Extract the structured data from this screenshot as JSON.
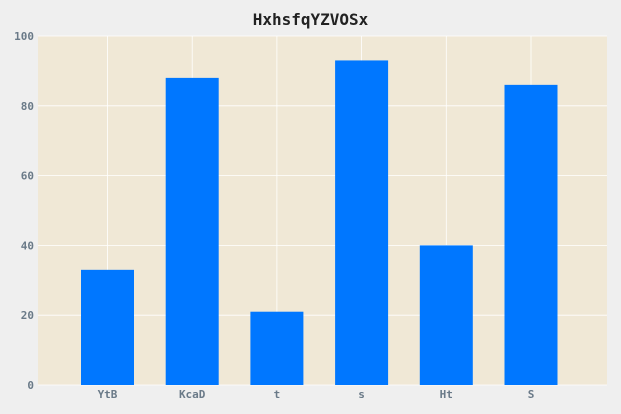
{
  "chart_data": {
    "type": "bar",
    "title": "HxhsfqYZVOSx",
    "xlabel": "",
    "ylabel": "",
    "categories": [
      "YtB",
      "KcaD",
      "t",
      "s",
      "Ht",
      "S"
    ],
    "values": [
      33,
      88,
      21,
      93,
      40,
      86
    ],
    "ylim": [
      0,
      100
    ],
    "yticks": [
      0,
      20,
      40,
      60,
      80,
      100
    ],
    "grid": true,
    "colors": {
      "bar": "#0077ff",
      "plot_background": "#f0e8d6",
      "page_background": "#efefef",
      "grid": "#ffffff",
      "tick_label": "#6a7a88",
      "title": "#222222"
    }
  }
}
